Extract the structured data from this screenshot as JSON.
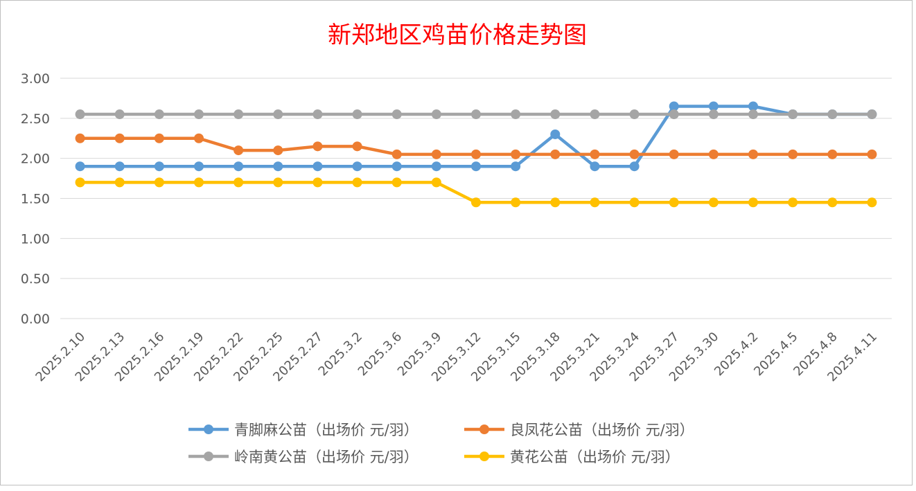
{
  "chart_data": {
    "type": "line",
    "title": "新郑地区鸡苗价格走势图",
    "xlabel": "",
    "ylabel": "",
    "ylim": [
      0,
      3
    ],
    "ytick_labels": [
      "0.00",
      "0.50",
      "1.00",
      "1.50",
      "2.00",
      "2.50",
      "3.00"
    ],
    "categories": [
      "2025.2.10",
      "2025.2.13",
      "2025.2.16",
      "2025.2.19",
      "2025.2.22",
      "2025.2.25",
      "2025.2.27",
      "2025.3.2",
      "2025.3.6",
      "2025.3.9",
      "2025.3.12",
      "2025.3.15",
      "2025.3.18",
      "2025.3.21",
      "2025.3.24",
      "2025.3.27",
      "2025.3.30",
      "2025.4.2",
      "2025.4.5",
      "2025.4.8",
      "2025.4.11"
    ],
    "grid": true,
    "legend_position": "bottom",
    "series": [
      {
        "name": "青脚麻公苗（出场价 元/羽）",
        "color": "#5B9BD5",
        "values": [
          1.9,
          1.9,
          1.9,
          1.9,
          1.9,
          1.9,
          1.9,
          1.9,
          1.9,
          1.9,
          1.9,
          1.9,
          2.3,
          1.9,
          1.9,
          2.65,
          2.65,
          2.65,
          2.55,
          2.55,
          2.55
        ]
      },
      {
        "name": "良凤花公苗（出场价 元/羽）",
        "color": "#ED7D31",
        "values": [
          2.25,
          2.25,
          2.25,
          2.25,
          2.1,
          2.1,
          2.15,
          2.15,
          2.05,
          2.05,
          2.05,
          2.05,
          2.05,
          2.05,
          2.05,
          2.05,
          2.05,
          2.05,
          2.05,
          2.05,
          2.05
        ]
      },
      {
        "name": "岭南黄公苗（出场价 元/羽）",
        "color": "#A5A5A5",
        "values": [
          2.55,
          2.55,
          2.55,
          2.55,
          2.55,
          2.55,
          2.55,
          2.55,
          2.55,
          2.55,
          2.55,
          2.55,
          2.55,
          2.55,
          2.55,
          2.55,
          2.55,
          2.55,
          2.55,
          2.55,
          2.55
        ]
      },
      {
        "name": "黄花公苗（出场价 元/羽）",
        "color": "#FFC000",
        "values": [
          1.7,
          1.7,
          1.7,
          1.7,
          1.7,
          1.7,
          1.7,
          1.7,
          1.7,
          1.7,
          1.45,
          1.45,
          1.45,
          1.45,
          1.45,
          1.45,
          1.45,
          1.45,
          1.45,
          1.45,
          1.45
        ]
      }
    ]
  },
  "colors": {
    "title": "#FF0000",
    "grid": "#D9D9D9",
    "axis_text": "#595959",
    "border": "#BFBFBF"
  }
}
